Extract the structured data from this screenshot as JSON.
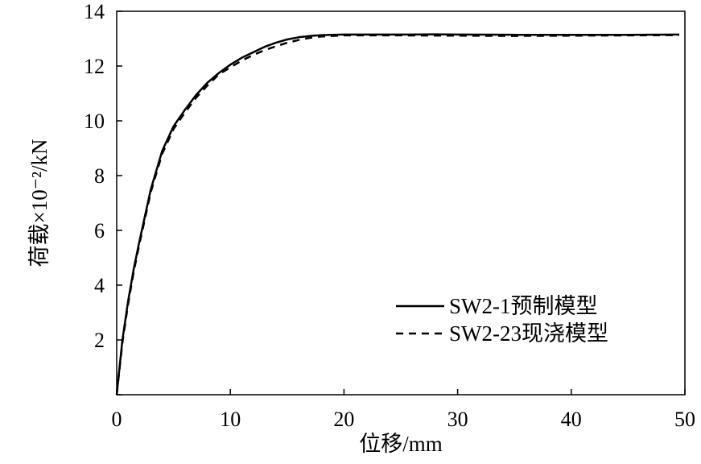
{
  "chart_data": {
    "type": "line",
    "xlabel": "位移/mm",
    "ylabel": "荷载×10⁻²/kN",
    "xlim": [
      0,
      50
    ],
    "ylim": [
      0,
      14
    ],
    "x_ticks": [
      "0",
      "10",
      "20",
      "30",
      "40",
      "50"
    ],
    "y_ticks": [
      "",
      "2",
      "4",
      "6",
      "8",
      "10",
      "12",
      "14"
    ],
    "grid": false,
    "legend_position": "bottom-right",
    "series": [
      {
        "name": "SW2-1预制模型",
        "style": "solid",
        "color": "#000000",
        "x": [
          0,
          0.5,
          1,
          1.5,
          2,
          3,
          4,
          5,
          6,
          7,
          8,
          9,
          10,
          11,
          12,
          13,
          14,
          15,
          16,
          17,
          18,
          19,
          20,
          25,
          28,
          30,
          35,
          40,
          45,
          49.5
        ],
        "y": [
          0,
          2.0,
          3.4,
          4.6,
          5.6,
          7.5,
          8.9,
          9.8,
          10.4,
          10.95,
          11.4,
          11.75,
          12.05,
          12.3,
          12.5,
          12.7,
          12.85,
          12.97,
          13.05,
          13.1,
          13.13,
          13.14,
          13.15,
          13.15,
          13.16,
          13.15,
          13.14,
          13.14,
          13.14,
          13.15
        ]
      },
      {
        "name": "SW2-23现浇模型",
        "style": "dashed",
        "color": "#000000",
        "x": [
          0,
          0.5,
          1,
          1.5,
          2,
          3,
          4,
          5,
          6,
          7,
          8,
          9,
          10,
          11,
          12,
          13,
          14,
          15,
          16,
          17,
          18,
          19,
          20,
          25,
          30,
          35,
          40,
          45,
          49.5
        ],
        "y": [
          0,
          1.9,
          3.3,
          4.5,
          5.5,
          7.4,
          8.8,
          9.7,
          10.3,
          10.85,
          11.3,
          11.7,
          11.95,
          12.2,
          12.4,
          12.58,
          12.72,
          12.85,
          12.95,
          13.03,
          13.08,
          13.1,
          13.12,
          13.12,
          13.11,
          13.1,
          13.11,
          13.12,
          13.13
        ]
      }
    ]
  }
}
